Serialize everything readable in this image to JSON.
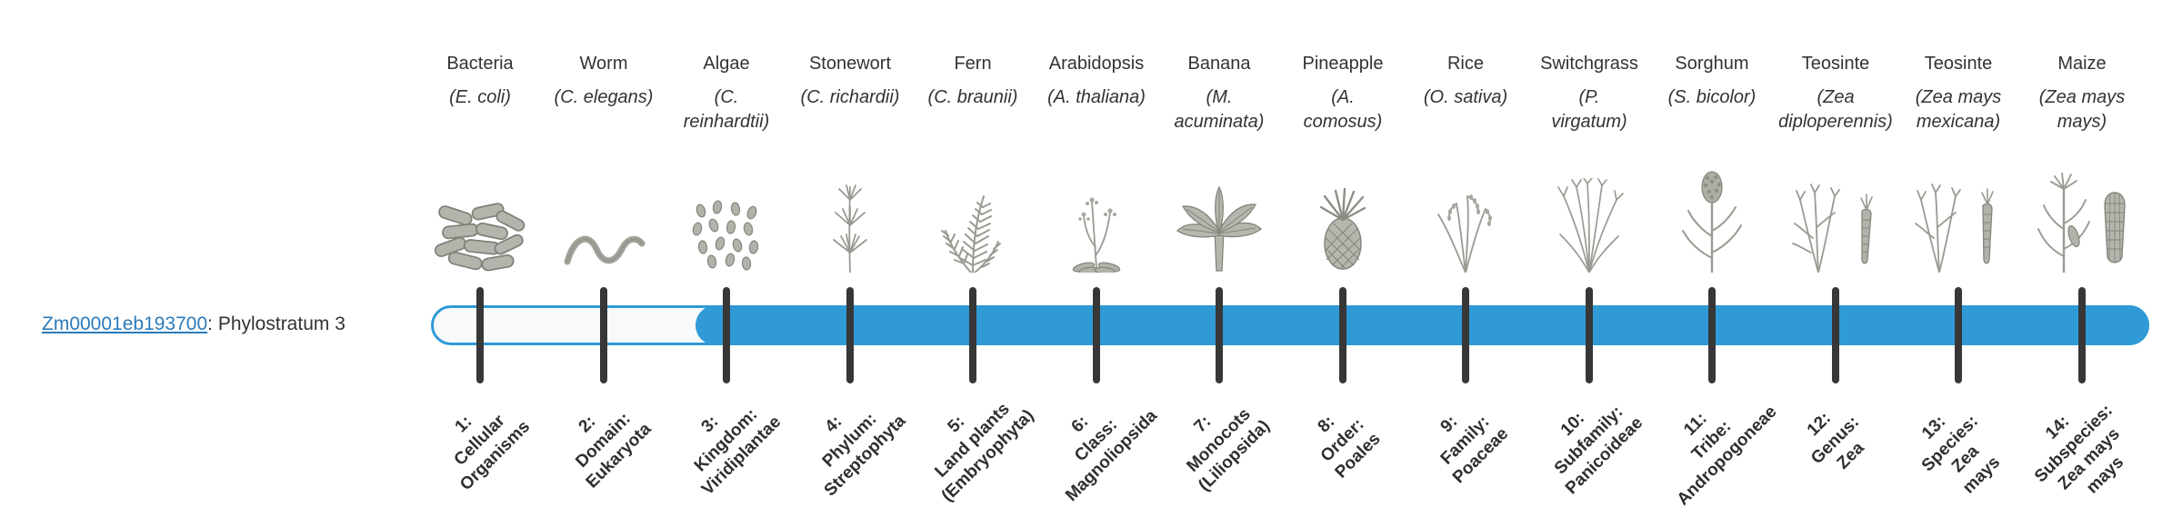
{
  "chart_data": {
    "type": "bar",
    "title": "Zm00001eb193700: Phylostratum 3",
    "gene_id": "Zm00001eb193700",
    "gene_suffix": ": Phylostratum 3",
    "assigned_phylostratum": 3,
    "filled_range": [
      3,
      14
    ],
    "num_strata": 14,
    "legend_position": "none",
    "strata": [
      {
        "number": 1,
        "common_name": "Bacteria",
        "scientific_name": "(E. coli)",
        "icon": "bacteria",
        "label": "1:\nCellular\nOrganisms"
      },
      {
        "number": 2,
        "common_name": "Worm",
        "scientific_name": "(C. elegans)",
        "icon": "worm",
        "label": "2:\nDomain:\nEukaryota"
      },
      {
        "number": 3,
        "common_name": "Algae",
        "scientific_name": "(C.\nreinhardtii)",
        "icon": "algae",
        "label": "3:\nKingdom:\nViridiplantae"
      },
      {
        "number": 4,
        "common_name": "Stonewort",
        "scientific_name": "(C. richardii)",
        "icon": "stonewort",
        "label": "4:\nPhylum:\nStreptophyta"
      },
      {
        "number": 5,
        "common_name": "Fern",
        "scientific_name": "(C. braunii)",
        "icon": "fern",
        "label": "5:\nLand plants\n(Embryophyta)"
      },
      {
        "number": 6,
        "common_name": "Arabidopsis",
        "scientific_name": "(A. thaliana)",
        "icon": "arabidopsis",
        "label": "6:\nClass:\nMagnoliopsida"
      },
      {
        "number": 7,
        "common_name": "Banana",
        "scientific_name": "(M.\nacuminata)",
        "icon": "banana",
        "label": "7:\nMonocots\n(Liliopsida)"
      },
      {
        "number": 8,
        "common_name": "Pineapple",
        "scientific_name": "(A.\ncomosus)",
        "icon": "pineapple",
        "label": "8:\nOrder:\nPoales"
      },
      {
        "number": 9,
        "common_name": "Rice",
        "scientific_name": "(O. sativa)",
        "icon": "rice",
        "label": "9:\nFamily:\nPoaceae"
      },
      {
        "number": 10,
        "common_name": "Switchgrass",
        "scientific_name": "(P.\nvirgatum)",
        "icon": "switchgrass",
        "label": "10:\nSubfamily:\nPanicoideae"
      },
      {
        "number": 11,
        "common_name": "Sorghum",
        "scientific_name": "(S. bicolor)",
        "icon": "sorghum",
        "label": "11:\nTribe:\nAndropogoneae"
      },
      {
        "number": 12,
        "common_name": "Teosinte",
        "scientific_name": "(Zea\ndiploperennis)",
        "icon": "teosinte",
        "label": "12:\nGenus:\nZea"
      },
      {
        "number": 13,
        "common_name": "Teosinte",
        "scientific_name": "(Zea mays\nmexicana)",
        "icon": "teosinte2",
        "label": "13:\nSpecies:\nZea\nmays"
      },
      {
        "number": 14,
        "common_name": "Maize",
        "scientific_name": "(Zea mays\nmays)",
        "icon": "maize",
        "label": "14:\nSubspecies:\nZea mays\nmays"
      }
    ]
  },
  "colors": {
    "bar_fill": "#2f9ad6",
    "bar_track": "#f7f9fa",
    "tick": "#373737",
    "link": "#2b7bbb",
    "text": "#333333"
  }
}
